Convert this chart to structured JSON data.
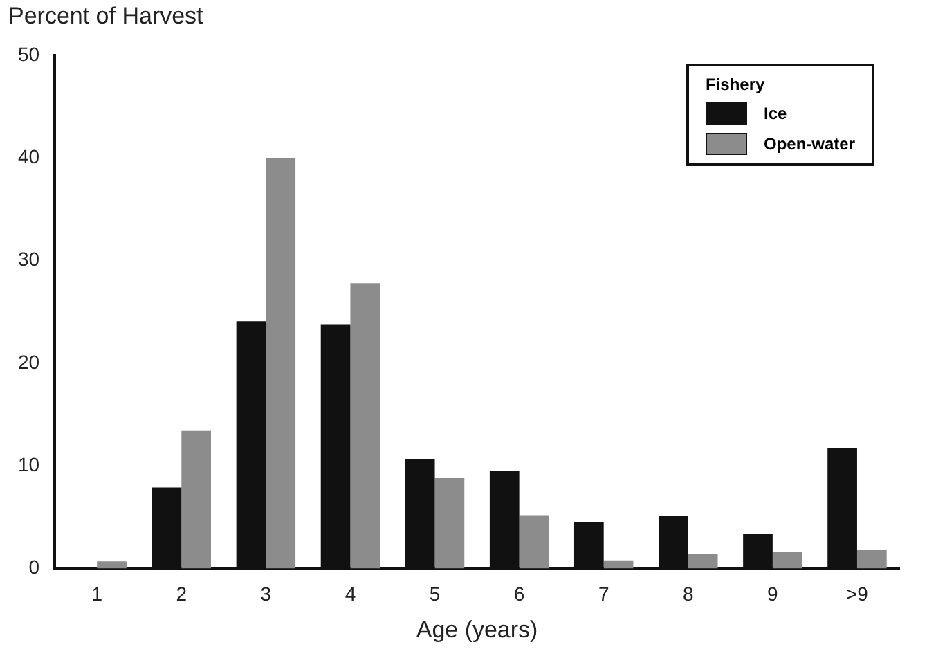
{
  "chart_data": {
    "type": "bar",
    "title": "Percent of Harvest",
    "xlabel": "Age (years)",
    "legend_title": "Fishery",
    "categories": [
      "1",
      "2",
      "3",
      "4",
      "5",
      "6",
      "7",
      "8",
      "9",
      ">9"
    ],
    "series": [
      {
        "name": "Ice",
        "color": "#111111",
        "values": [
          0,
          7.9,
          24.1,
          23.8,
          10.7,
          9.5,
          4.5,
          5.1,
          3.4,
          11.7
        ]
      },
      {
        "name": "Open-water",
        "color": "#8c8c8c",
        "values": [
          0.7,
          13.4,
          40,
          27.8,
          8.8,
          5.2,
          0.8,
          1.4,
          1.6,
          1.8
        ]
      }
    ],
    "ylim": [
      0,
      50
    ],
    "yticks": [
      0,
      10,
      20,
      30,
      40,
      50
    ],
    "grid": false,
    "legend": "top right"
  }
}
